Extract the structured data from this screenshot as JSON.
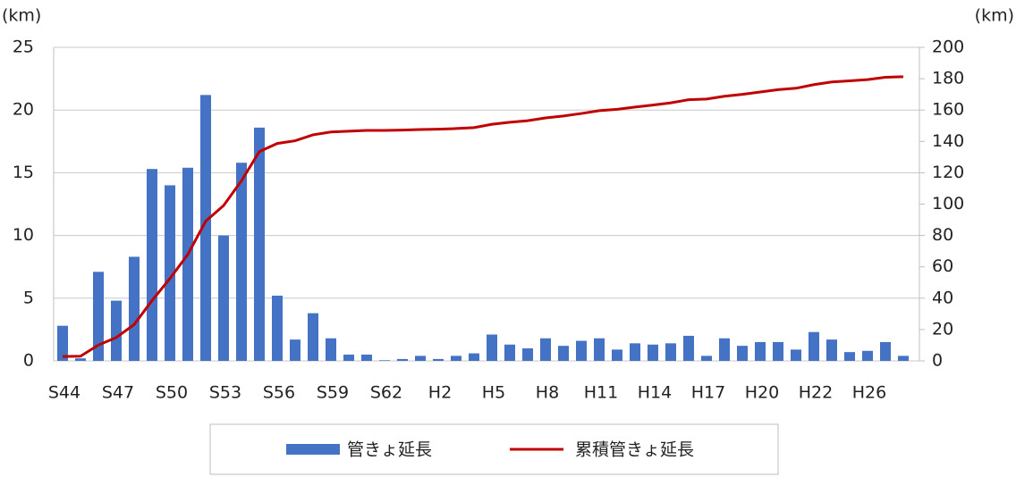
{
  "chart_data": {
    "type": "bar_line",
    "y_label": "(km)",
    "y2_label": "(km)",
    "categories": [
      "S44",
      null,
      null,
      "S47",
      null,
      null,
      "S50",
      null,
      null,
      "S53",
      null,
      null,
      "S56",
      null,
      null,
      "S59",
      null,
      null,
      "S62",
      null,
      null,
      "H2",
      null,
      null,
      "H5",
      null,
      null,
      "H8",
      null,
      null,
      "H11",
      null,
      null,
      "H14",
      null,
      null,
      "H17",
      null,
      null,
      "H20",
      null,
      null,
      "H22",
      null,
      null,
      "H26",
      null,
      null
    ],
    "series": [
      {
        "name": "管きょ延長",
        "color": "#4472c4",
        "kind": "bar",
        "axis": "y",
        "values": [
          2.8,
          0.2,
          7.1,
          4.8,
          8.3,
          15.3,
          14.0,
          15.4,
          21.2,
          10.0,
          15.8,
          18.6,
          5.2,
          1.7,
          3.8,
          1.8,
          0.5,
          0.5,
          0.05,
          0.15,
          0.4,
          0.15,
          0.4,
          0.6,
          2.1,
          1.3,
          1.0,
          1.8,
          1.2,
          1.6,
          1.8,
          0.9,
          1.4,
          1.3,
          1.4,
          2.0,
          0.4,
          1.8,
          1.2,
          1.5,
          1.5,
          0.9,
          2.3,
          1.7,
          0.7,
          0.8,
          1.5,
          0.4
        ]
      },
      {
        "name": "累積管きょ延長",
        "color": "#c00000",
        "kind": "line",
        "axis": "y2",
        "values": [
          2.8,
          3.0,
          10.1,
          14.9,
          23.2,
          38.5,
          52.5,
          67.9,
          89.1,
          99.1,
          114.9,
          133.5,
          138.7,
          140.4,
          144.2,
          146.0,
          146.5,
          147.0,
          147.0,
          147.2,
          147.6,
          147.8,
          148.2,
          148.8,
          150.9,
          152.2,
          153.2,
          155.0,
          156.2,
          157.8,
          159.6,
          160.5,
          161.9,
          163.2,
          164.6,
          166.6,
          167.0,
          168.8,
          170.0,
          171.5,
          173.0,
          173.9,
          176.2,
          177.9,
          178.6,
          179.4,
          180.9,
          181.3
        ]
      }
    ],
    "ylim": [
      0,
      25
    ],
    "yticks": [
      0,
      5,
      10,
      15,
      20,
      25
    ],
    "y2lim": [
      0,
      200
    ],
    "y2ticks": [
      0,
      20,
      40,
      60,
      80,
      100,
      120,
      140,
      160,
      180,
      200
    ],
    "grid": true,
    "legend": "bottom"
  }
}
